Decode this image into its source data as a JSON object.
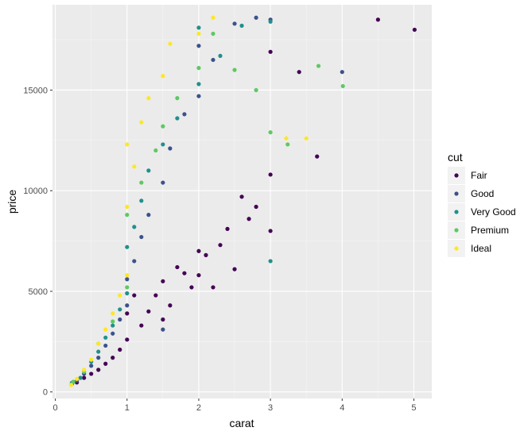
{
  "chart_data": {
    "type": "scatter",
    "title": "",
    "xlabel": "carat",
    "ylabel": "price",
    "xlim": [
      -0.04,
      5.25
    ],
    "ylim": [
      -326,
      19240
    ],
    "xticks": [
      0,
      1,
      2,
      3,
      4,
      5
    ],
    "yticks": [
      0,
      5000,
      10000,
      15000
    ],
    "grid": true,
    "legend": {
      "title": "cut",
      "position": "right"
    },
    "series": [
      {
        "name": "Fair",
        "color": "#440154",
        "points": [
          [
            0.25,
            500
          ],
          [
            0.3,
            470
          ],
          [
            0.4,
            700
          ],
          [
            0.5,
            900
          ],
          [
            0.6,
            1100
          ],
          [
            0.7,
            1400
          ],
          [
            0.8,
            1700
          ],
          [
            0.9,
            2100
          ],
          [
            1.0,
            2600
          ],
          [
            1.0,
            3900
          ],
          [
            1.1,
            4800
          ],
          [
            1.2,
            3300
          ],
          [
            1.3,
            4000
          ],
          [
            1.4,
            4800
          ],
          [
            1.5,
            3600
          ],
          [
            1.5,
            5500
          ],
          [
            1.6,
            4300
          ],
          [
            1.7,
            6200
          ],
          [
            1.8,
            5900
          ],
          [
            1.9,
            5200
          ],
          [
            2.0,
            5800
          ],
          [
            2.0,
            7000
          ],
          [
            2.1,
            6800
          ],
          [
            2.2,
            5200
          ],
          [
            2.3,
            7300
          ],
          [
            2.4,
            8100
          ],
          [
            2.5,
            6100
          ],
          [
            2.6,
            9700
          ],
          [
            2.7,
            8600
          ],
          [
            2.8,
            9200
          ],
          [
            3.0,
            8000
          ],
          [
            3.0,
            10800
          ],
          [
            3.0,
            16900
          ],
          [
            3.4,
            15900
          ],
          [
            3.65,
            11700
          ],
          [
            4.5,
            18500
          ],
          [
            5.01,
            18000
          ]
        ]
      },
      {
        "name": "Good",
        "color": "#3b528b",
        "points": [
          [
            0.23,
            400
          ],
          [
            0.3,
            560
          ],
          [
            0.4,
            900
          ],
          [
            0.5,
            1300
          ],
          [
            0.6,
            1700
          ],
          [
            0.7,
            2300
          ],
          [
            0.8,
            2900
          ],
          [
            0.9,
            3600
          ],
          [
            1.0,
            4300
          ],
          [
            1.0,
            5600
          ],
          [
            1.1,
            6500
          ],
          [
            1.2,
            7700
          ],
          [
            1.3,
            8800
          ],
          [
            1.5,
            3100
          ],
          [
            1.5,
            10400
          ],
          [
            1.6,
            12100
          ],
          [
            1.8,
            13800
          ],
          [
            2.0,
            14700
          ],
          [
            2.0,
            17200
          ],
          [
            2.2,
            16500
          ],
          [
            2.5,
            18300
          ],
          [
            2.8,
            18600
          ],
          [
            3.0,
            18500
          ],
          [
            4.0,
            15900
          ]
        ]
      },
      {
        "name": "Very Good",
        "color": "#21908c",
        "points": [
          [
            0.23,
            450
          ],
          [
            0.35,
            700
          ],
          [
            0.5,
            1500
          ],
          [
            0.6,
            2000
          ],
          [
            0.7,
            2700
          ],
          [
            0.8,
            3300
          ],
          [
            0.9,
            4100
          ],
          [
            1.0,
            4900
          ],
          [
            1.0,
            7200
          ],
          [
            1.1,
            8200
          ],
          [
            1.2,
            9500
          ],
          [
            1.3,
            11000
          ],
          [
            1.5,
            12300
          ],
          [
            1.7,
            13600
          ],
          [
            2.0,
            15300
          ],
          [
            2.0,
            18100
          ],
          [
            2.3,
            16700
          ],
          [
            2.6,
            18200
          ],
          [
            3.0,
            6500
          ],
          [
            3.0,
            18400
          ]
        ]
      },
      {
        "name": "Premium",
        "color": "#5ec962",
        "points": [
          [
            0.25,
            500
          ],
          [
            0.4,
            1000
          ],
          [
            0.6,
            2400
          ],
          [
            0.8,
            3500
          ],
          [
            1.0,
            5200
          ],
          [
            1.0,
            8800
          ],
          [
            1.2,
            10400
          ],
          [
            1.4,
            12000
          ],
          [
            1.5,
            13200
          ],
          [
            1.7,
            14600
          ],
          [
            2.0,
            16100
          ],
          [
            2.2,
            17800
          ],
          [
            2.5,
            16000
          ],
          [
            2.8,
            15000
          ],
          [
            3.0,
            12900
          ],
          [
            3.24,
            12300
          ],
          [
            3.67,
            16200
          ],
          [
            4.01,
            15200
          ]
        ]
      },
      {
        "name": "Ideal",
        "color": "#fde725",
        "points": [
          [
            0.22,
            350
          ],
          [
            0.3,
            650
          ],
          [
            0.4,
            1100
          ],
          [
            0.5,
            1600
          ],
          [
            0.6,
            2400
          ],
          [
            0.7,
            3100
          ],
          [
            0.8,
            3900
          ],
          [
            0.9,
            4800
          ],
          [
            1.0,
            5800
          ],
          [
            1.0,
            9200
          ],
          [
            1.0,
            12300
          ],
          [
            1.1,
            11200
          ],
          [
            1.2,
            13400
          ],
          [
            1.3,
            14600
          ],
          [
            1.5,
            15700
          ],
          [
            1.6,
            17300
          ],
          [
            2.0,
            17800
          ],
          [
            2.2,
            18600
          ],
          [
            3.22,
            12600
          ],
          [
            3.5,
            12600
          ]
        ]
      }
    ]
  }
}
